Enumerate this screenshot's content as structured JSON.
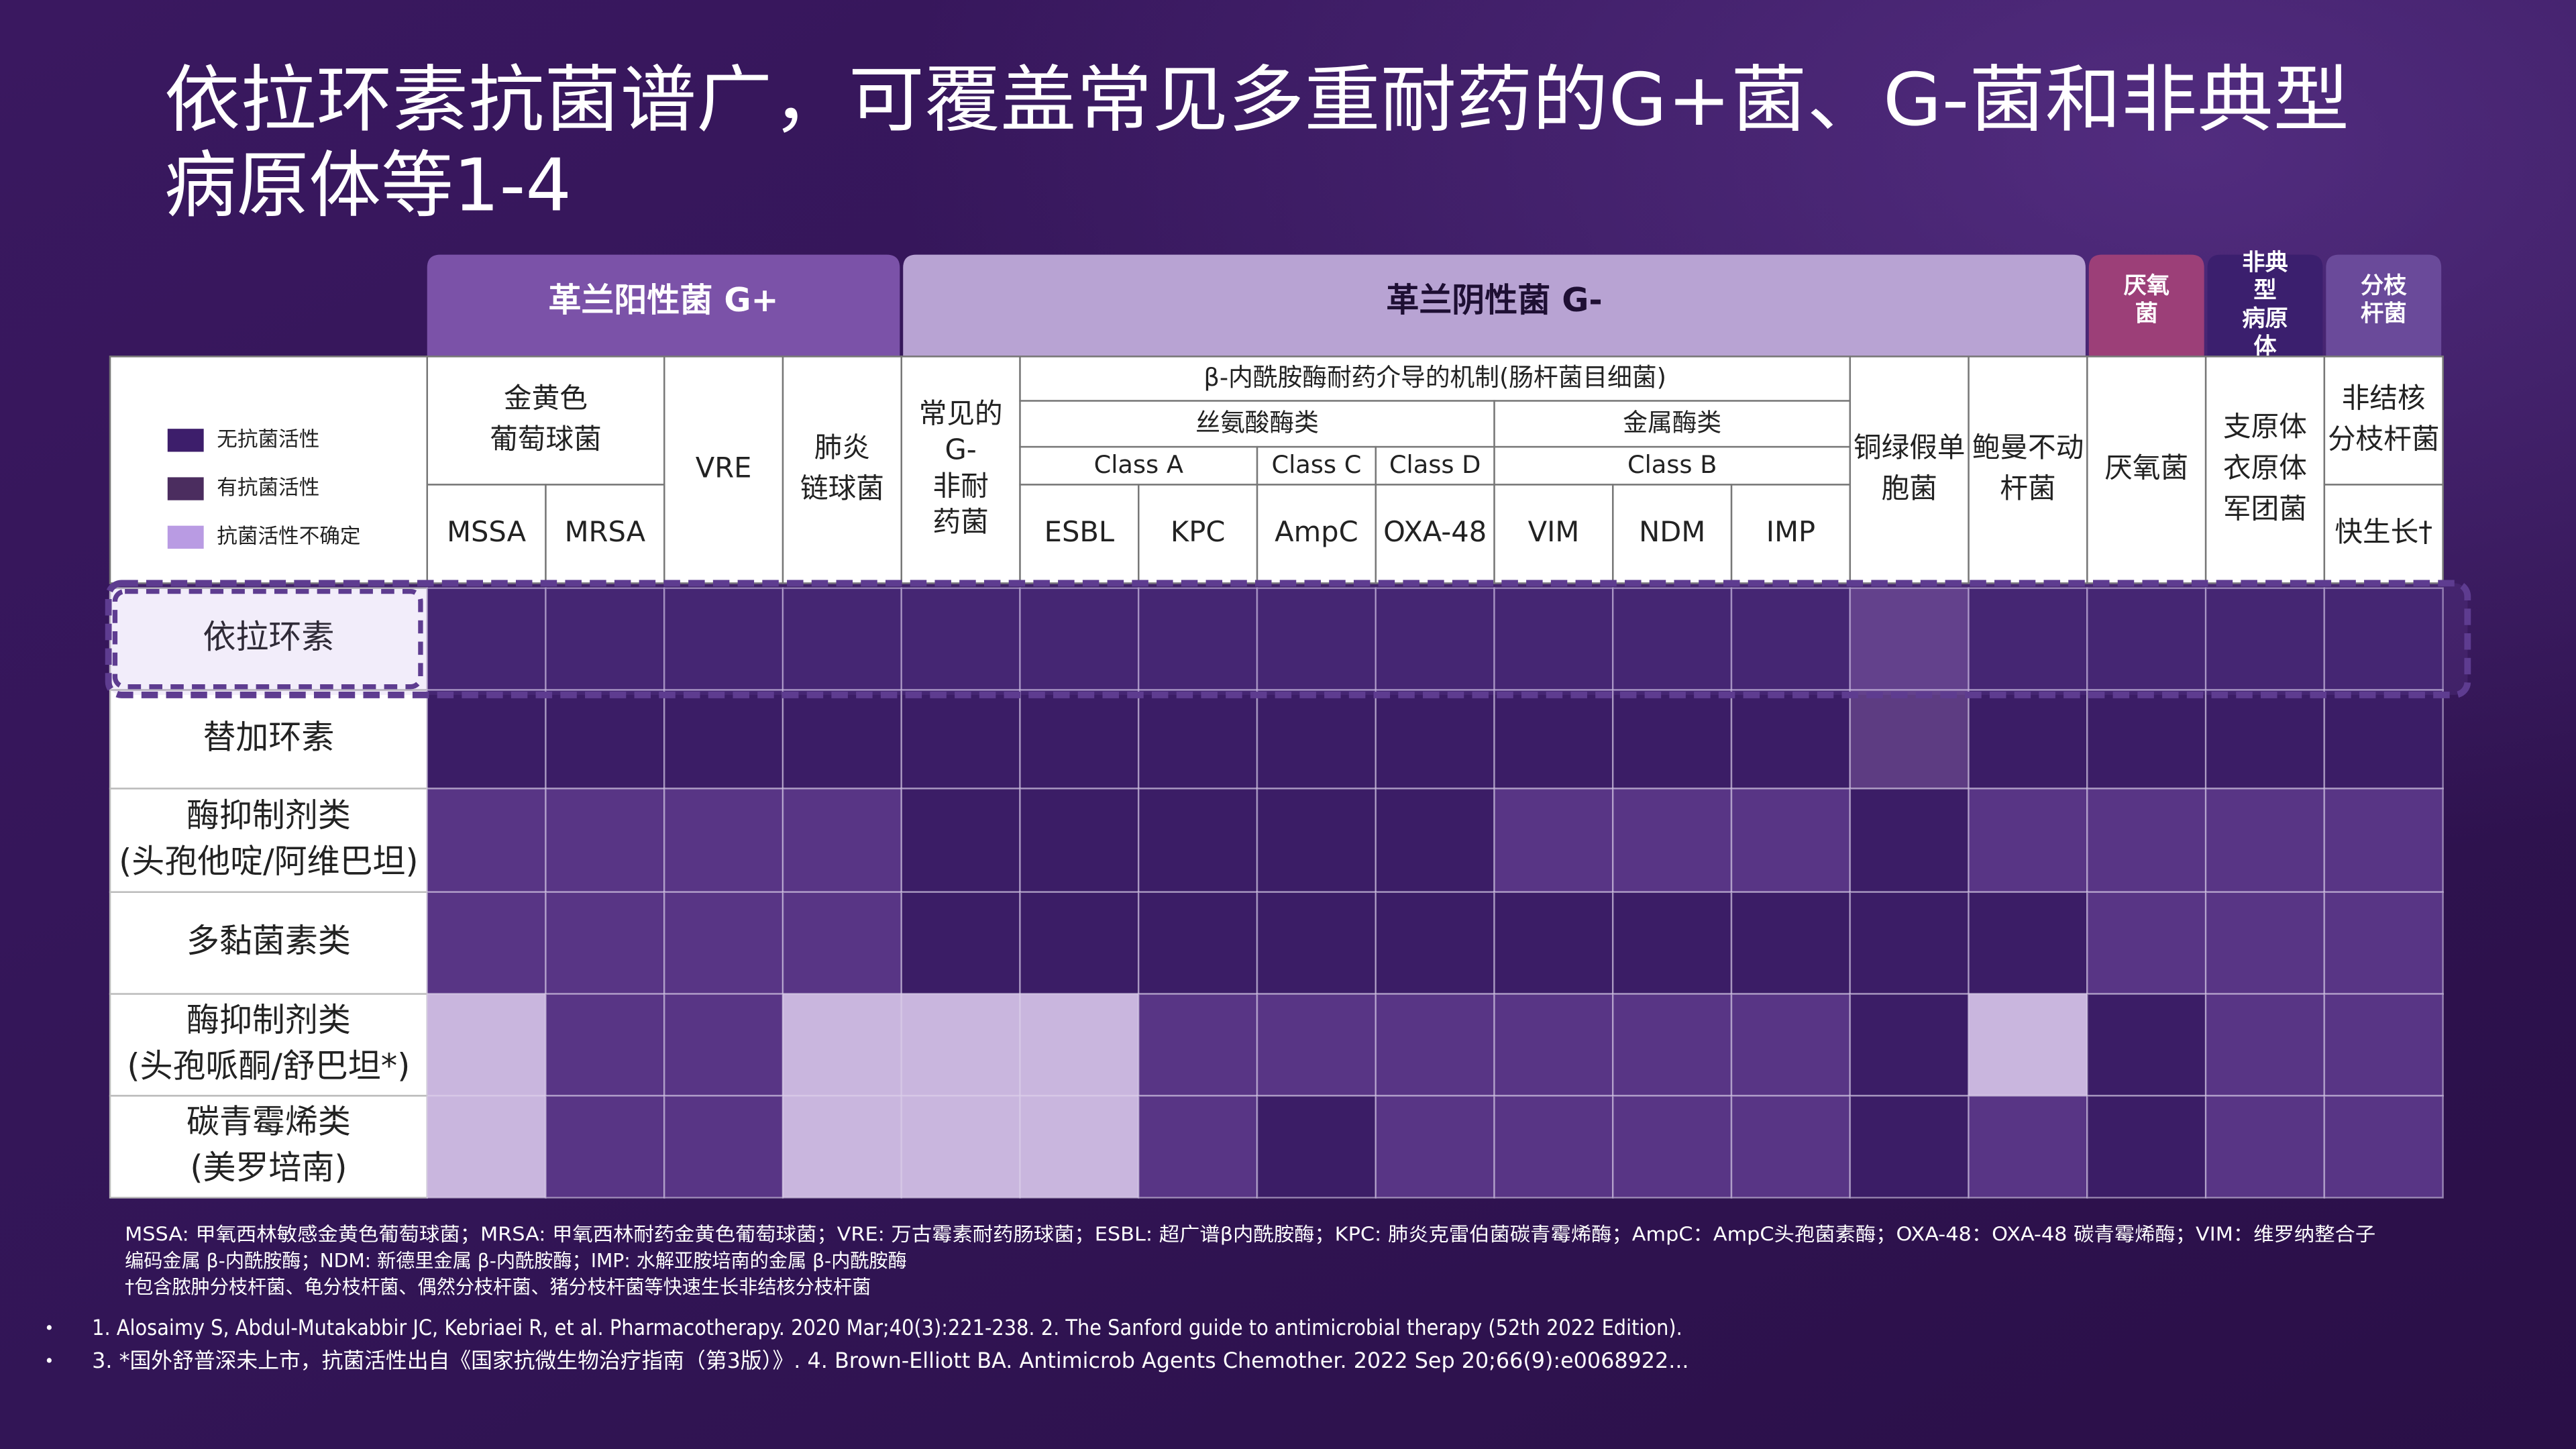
{
  "title": [
    "依拉环素抗菌谱广，可覆盖常见多重耐药的G+菌、G-菌和非典型",
    "病原体等1-4"
  ],
  "legend": [
    {
      "label": "无抗菌活性",
      "color": "#3d1e6b"
    },
    {
      "label": "有抗菌活性",
      "color": "#4b2d5f"
    },
    {
      "label": "抗菌活性不确定",
      "color": "#b99be3"
    }
  ],
  "groups": [
    {
      "lines": [
        "革兰阳性菌 G+"
      ],
      "color": "#7b52a8",
      "text_color": "#ffffff"
    },
    {
      "lines": [
        "革兰阴性菌 G-"
      ],
      "color": "#b8a3d3",
      "text_color": "#1e0f33"
    },
    {
      "lines": [
        "厌氧",
        "菌"
      ],
      "color": "#9c3f78",
      "text_color": "#ffffff"
    },
    {
      "lines": [
        "非典",
        "型",
        "病原",
        "体"
      ],
      "color": "#3b1f6e",
      "text_color": "#ffffff"
    },
    {
      "lines": [
        "分枝",
        "杆菌"
      ],
      "color": "#6a4a9a",
      "text_color": "#ffffff"
    }
  ],
  "column_headers": [
    {
      "lines": [
        "金黄色",
        "葡萄球菌"
      ]
    },
    {
      "lines": [
        "VRE"
      ]
    },
    {
      "lines": [
        "肺炎",
        "链球菌"
      ]
    },
    {
      "lines": [
        "常见的",
        "G-",
        "非耐",
        "药菌"
      ]
    },
    {
      "lines": [
        "β-内酰胺酶耐药介导的机制(肠杆菌目细菌)"
      ]
    },
    {
      "lines": [
        "丝氨酸酶类"
      ]
    },
    {
      "lines": [
        "金属酶类"
      ]
    },
    {
      "lines": [
        "Class A"
      ]
    },
    {
      "lines": [
        "Class C"
      ]
    },
    {
      "lines": [
        "Class D"
      ]
    },
    {
      "lines": [
        "Class B"
      ]
    },
    {
      "lines": [
        "MSSA"
      ]
    },
    {
      "lines": [
        "MRSA"
      ]
    },
    {
      "lines": [
        "ESBL"
      ]
    },
    {
      "lines": [
        "KPC"
      ]
    },
    {
      "lines": [
        "AmpC"
      ]
    },
    {
      "lines": [
        "OXA-48"
      ]
    },
    {
      "lines": [
        "VIM"
      ]
    },
    {
      "lines": [
        "NDM"
      ]
    },
    {
      "lines": [
        "IMP"
      ]
    },
    {
      "lines": [
        "铜绿假单",
        "胞菌"
      ]
    },
    {
      "lines": [
        "鲍曼不动",
        "杆菌"
      ]
    },
    {
      "lines": [
        "厌氧菌"
      ]
    },
    {
      "lines": [
        "支原体",
        "衣原体",
        "军团菌"
      ]
    },
    {
      "lines": [
        "非结核",
        "分枝杆菌"
      ]
    },
    {
      "lines": [
        "快生长†"
      ]
    }
  ],
  "rows": [
    {
      "lines": [
        "依拉环素"
      ],
      "cells": [
        "#3b1d66",
        "#3b1d66",
        "#3b1d66",
        "#3b1d66",
        "#3b1d66",
        "#3b1d66",
        "#3b1d66",
        "#3b1d66",
        "#3b1d66",
        "#3b1d66",
        "#3b1d66",
        "#3b1d66",
        "#5d3c82",
        "#3b1d66",
        "#3b1d66",
        "#3b1d66",
        "#3b1d66"
      ]
    },
    {
      "lines": [
        "替加环素"
      ],
      "cells": [
        "#3b1d66",
        "#3b1d66",
        "#3b1d66",
        "#3b1d66",
        "#3b1d66",
        "#3b1d66",
        "#3b1d66",
        "#3b1d66",
        "#3b1d66",
        "#3b1d66",
        "#3b1d66",
        "#3b1d66",
        "#5d3c82",
        "#3b1d66",
        "#3b1d66",
        "#3b1d66",
        "#3b1d66"
      ]
    },
    {
      "lines": [
        "酶抑制剂类",
        "(头孢他啶/阿维巴坦)"
      ],
      "cells": [
        "#583585",
        "#583585",
        "#583585",
        "#583585",
        "#3b1d66",
        "#3b1d66",
        "#3b1d66",
        "#3b1d66",
        "#3b1d66",
        "#583585",
        "#583585",
        "#583585",
        "#3b1d66",
        "#583585",
        "#583585",
        "#583585",
        "#583585"
      ]
    },
    {
      "lines": [
        "多黏菌素类"
      ],
      "cells": [
        "#583585",
        "#583585",
        "#583585",
        "#583585",
        "#3b1d66",
        "#3b1d66",
        "#3b1d66",
        "#3b1d66",
        "#3b1d66",
        "#3b1d66",
        "#3b1d66",
        "#3b1d66",
        "#3b1d66",
        "#3b1d66",
        "#583585",
        "#583585",
        "#583585"
      ]
    },
    {
      "lines": [
        "酶抑制剂类",
        "(头孢哌酮/舒巴坦*)"
      ],
      "cells": [
        "#c9b6de",
        "#583585",
        "#583585",
        "#c9b6de",
        "#c9b6de",
        "#c9b6de",
        "#583585",
        "#583585",
        "#583585",
        "#583585",
        "#583585",
        "#583585",
        "#3b1d66",
        "#c9b6de",
        "#3b1d66",
        "#583585",
        "#583585"
      ]
    },
    {
      "lines": [
        "碳青霉烯类",
        "(美罗培南)"
      ],
      "cells": [
        "#c9b6de",
        "#583585",
        "#583585",
        "#c9b6de",
        "#c9b6de",
        "#c9b6de",
        "#583585",
        "#3b1d66",
        "#583585",
        "#583585",
        "#583585",
        "#583585",
        "#3b1d66",
        "#583585",
        "#3b1d66",
        "#583585",
        "#583585"
      ]
    }
  ],
  "footnotes": [
    "MSSA: 甲氧西林敏感金黄色葡萄球菌；MRSA: 甲氧西林耐药金黄色葡萄球菌；VRE: 万古霉素耐药肠球菌；ESBL: 超广谱β内酰胺酶；KPC: 肺炎克雷伯菌碳青霉烯酶；AmpC：AmpC头孢菌素酶；OXA-48：OXA-48 碳青霉烯酶；VIM：维罗纳整合子",
    "编码金属 β-内酰胺酶；NDM: 新德里金属 β-内酰胺酶；IMP: 水解亚胺培南的金属 β-内酰胺酶",
    "†包含脓肿分枝杆菌、龟分枝杆菌、偶然分枝杆菌、猪分枝杆菌等快速生长非结核分枝杆菌"
  ],
  "references": [
    "1. Alosaimy S, Abdul-Mutakabbir JC, Kebriaei R, et al. Pharmacotherapy. 2020 Mar;40(3):221-238.  2. The Sanford guide to antimicrobial therapy (52th 2022 Edition).",
    "3. *国外舒普深未上市，抗菌活性出自《国家抗微生物治疗指南（第3版）》. 4. Brown-Elliott BA. Antimicrob Agents Chemother. 2022 Sep 20;66(9):e0068922..."
  ]
}
